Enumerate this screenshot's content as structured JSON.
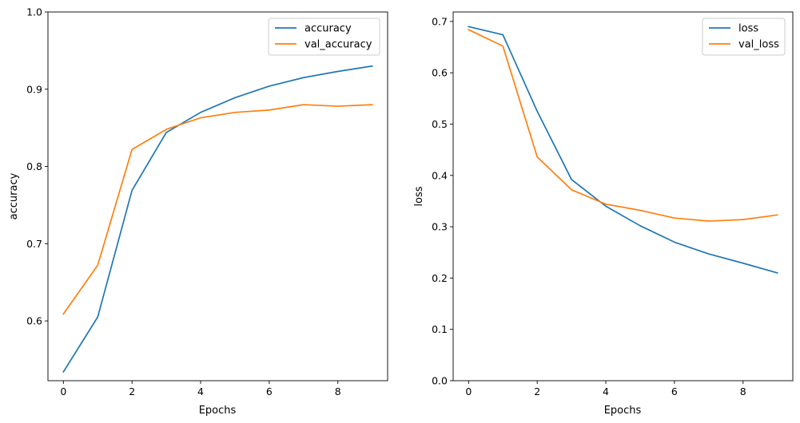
{
  "colors": {
    "series_blue": "#1f77b4",
    "series_orange": "#ff7f0e"
  },
  "chart_data": [
    {
      "type": "line",
      "xlabel": "Epochs",
      "ylabel": "accuracy",
      "xlim": [
        -0.45,
        9.45
      ],
      "ylim": [
        0.5226,
        1.0
      ],
      "xticks": [
        0,
        2,
        4,
        6,
        8
      ],
      "yticks": [
        0.6,
        0.7,
        0.8,
        0.9,
        1.0
      ],
      "xtick_labels": [
        "0",
        "2",
        "4",
        "6",
        "8"
      ],
      "ytick_labels": [
        "0.6",
        "0.7",
        "0.8",
        "0.9",
        "1.0"
      ],
      "grid": false,
      "legend_position": "top-right",
      "x": [
        0,
        1,
        2,
        3,
        4,
        5,
        6,
        7,
        8,
        9
      ],
      "series": [
        {
          "name": "accuracy",
          "color": "#1f77b4",
          "values": [
            0.534,
            0.605,
            0.769,
            0.844,
            0.87,
            0.889,
            0.904,
            0.915,
            0.923,
            0.93
          ]
        },
        {
          "name": "val_accuracy",
          "color": "#ff7f0e",
          "values": [
            0.609,
            0.672,
            0.822,
            0.848,
            0.863,
            0.87,
            0.873,
            0.88,
            0.878,
            0.88
          ]
        }
      ]
    },
    {
      "type": "line",
      "xlabel": "Epochs",
      "ylabel": "loss",
      "xlim": [
        -0.45,
        9.45
      ],
      "ylim": [
        0.0,
        0.7185
      ],
      "xticks": [
        0,
        2,
        4,
        6,
        8
      ],
      "yticks": [
        0.0,
        0.1,
        0.2,
        0.3,
        0.4,
        0.5,
        0.6,
        0.7
      ],
      "xtick_labels": [
        "0",
        "2",
        "4",
        "6",
        "8"
      ],
      "ytick_labels": [
        "0.0",
        "0.1",
        "0.2",
        "0.3",
        "0.4",
        "0.5",
        "0.6",
        "0.7"
      ],
      "grid": false,
      "legend_position": "top-right",
      "x": [
        0,
        1,
        2,
        3,
        4,
        5,
        6,
        7,
        8,
        9
      ],
      "series": [
        {
          "name": "loss",
          "color": "#1f77b4",
          "values": [
            0.69,
            0.674,
            0.525,
            0.392,
            0.34,
            0.302,
            0.27,
            0.247,
            0.229,
            0.21
          ]
        },
        {
          "name": "val_loss",
          "color": "#ff7f0e",
          "values": [
            0.684,
            0.652,
            0.436,
            0.372,
            0.344,
            0.332,
            0.317,
            0.311,
            0.314,
            0.323
          ]
        }
      ]
    }
  ]
}
